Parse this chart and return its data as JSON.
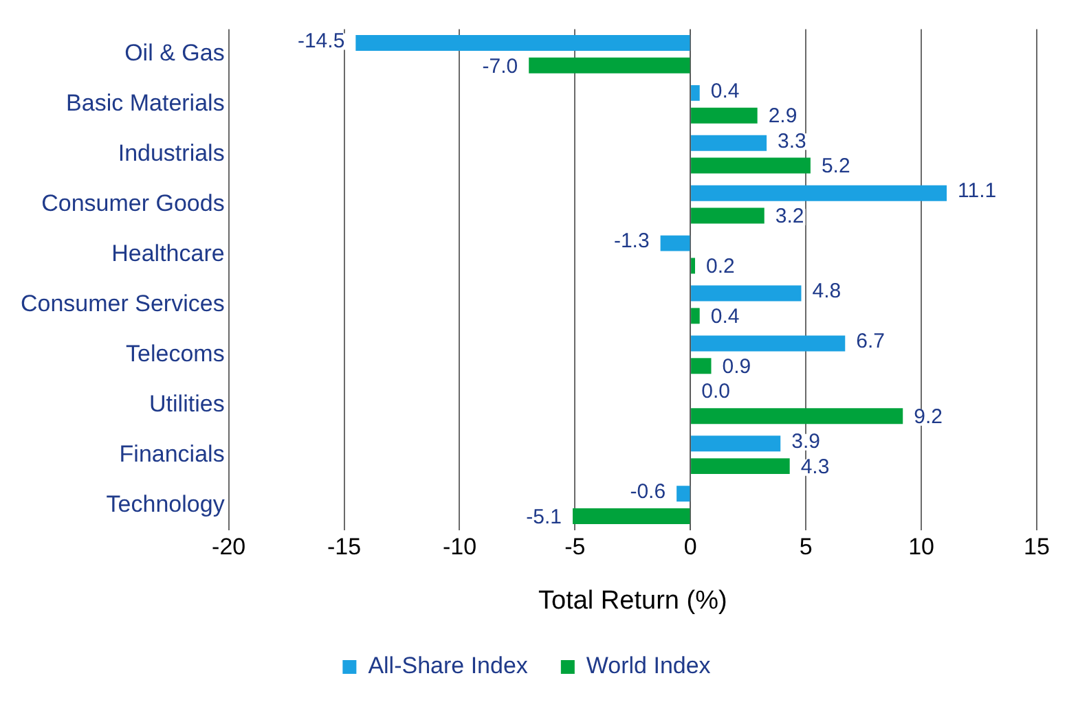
{
  "chart_data": {
    "type": "bar",
    "orientation": "horizontal",
    "xlabel": "Total Return (%)",
    "categories": [
      "Oil & Gas",
      "Basic Materials",
      "Industrials",
      "Consumer Goods",
      "Healthcare",
      "Consumer Services",
      "Telecoms",
      "Utilities",
      "Financials",
      "Technology"
    ],
    "series": [
      {
        "name": "All-Share Index",
        "color": "#1ba1e2",
        "values": [
          -14.5,
          0.4,
          3.3,
          11.1,
          -1.3,
          4.8,
          6.7,
          0.0,
          3.9,
          -0.6
        ],
        "value_labels": [
          "-14.5",
          "0.4",
          "3.3",
          "11.1",
          "-1.3",
          "4.8",
          "6.7",
          "0.0",
          "3.9",
          "-0.6"
        ]
      },
      {
        "name": "World Index",
        "color": "#00a33c",
        "values": [
          -7.0,
          2.9,
          5.2,
          3.2,
          0.2,
          0.4,
          0.9,
          9.2,
          4.3,
          -5.1
        ],
        "value_labels": [
          "-7.0",
          "2.9",
          "5.2",
          "3.2",
          "0.2",
          "0.4",
          "0.9",
          "9.2",
          "4.3",
          "-5.1"
        ]
      }
    ],
    "xlim": [
      -20,
      15
    ],
    "xticks": [
      -20,
      -15,
      -10,
      -5,
      0,
      5,
      10,
      15
    ],
    "grid": "x",
    "legend": "bottom"
  }
}
